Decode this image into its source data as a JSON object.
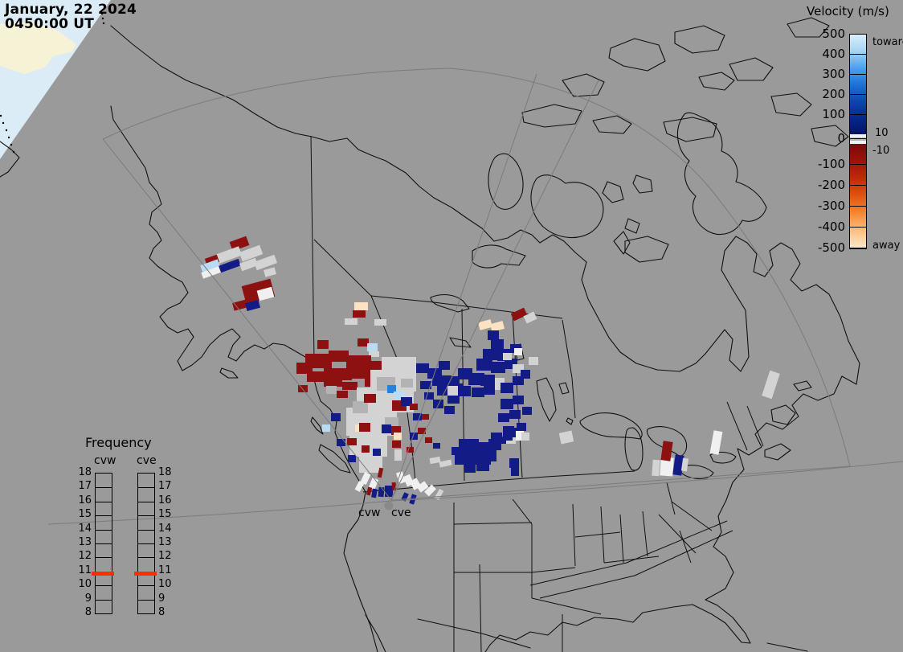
{
  "timestamp": {
    "date_line": "January, 22 2024",
    "time_line": "0450:00 UT"
  },
  "velocity_legend": {
    "title": "Velocity (m/s)",
    "tick_values": [
      "500",
      "400",
      "300",
      "200",
      "100",
      "0",
      "-100",
      "-200",
      "-300",
      "-400",
      "-500"
    ],
    "toward_label": "toward",
    "away_label": "away",
    "threshold_positive": "10",
    "threshold_negative": "-10",
    "gradient_toward": [
      "#d9effb",
      "#a6d5f4",
      "#4da1ee",
      "#1d73d7",
      "#0c47ae",
      "#07278d",
      "#041463"
    ],
    "gradient_away": [
      "#7a0b0b",
      "#9e1209",
      "#c02c06",
      "#e05510",
      "#f58a35",
      "#fbc184",
      "#fdeacb"
    ],
    "ground_band_colors": [
      "#f2f2f2",
      "#b5b5b5",
      "#f2f2f2"
    ]
  },
  "frequency_legend": {
    "title": "Frequency",
    "columns": [
      {
        "label": "cvw"
      },
      {
        "label": "cve"
      }
    ],
    "tick_values": [
      "18",
      "17",
      "16",
      "15",
      "14",
      "13",
      "12",
      "11",
      "10",
      "9",
      "8"
    ],
    "marker_color": "#ff2e00"
  },
  "map": {
    "radar_labels": [
      {
        "label": "cvw"
      },
      {
        "label": "cve"
      }
    ],
    "background_color": "#9a9a9a",
    "outline_color": "#101010",
    "fov_line_color": "#7b7b7b",
    "corner_sea_color": "#dcecf6",
    "corner_land_color": "#f6f2d6",
    "radar_dot_color": "#8a8a8a",
    "cell_palette": {
      "R": "#8e1111",
      "B": "#131c86",
      "G": "#d3d3d3",
      "W": "#f0f0f0",
      "LB": "#b7dcf4",
      "MB": "#2b7fdc",
      "P": "#fbe2c2",
      "MG": "#b3b3b3"
    },
    "cells": [
      [
        "R",
        287,
        297,
        22,
        12,
        -20
      ],
      [
        "G",
        270,
        311,
        30,
        12,
        -20
      ],
      [
        "G",
        299,
        309,
        27,
        12,
        -20
      ],
      [
        "R",
        256,
        319,
        16,
        10,
        -20
      ],
      [
        "LB",
        250,
        326,
        23,
        9,
        -20
      ],
      [
        "W",
        251,
        335,
        23,
        8,
        -20
      ],
      [
        "B",
        273,
        326,
        26,
        9,
        -20
      ],
      [
        "G",
        299,
        324,
        21,
        10,
        -20
      ],
      [
        "G",
        317,
        321,
        27,
        11,
        -20
      ],
      [
        "G",
        329,
        334,
        14,
        9,
        -15
      ],
      [
        "R",
        303,
        351,
        37,
        23,
        -15
      ],
      [
        "W",
        321,
        359,
        19,
        13,
        -15
      ],
      [
        "R",
        290,
        374,
        22,
        10,
        -15
      ],
      [
        "B",
        306,
        375,
        17,
        10,
        -15
      ],
      [
        "P",
        441,
        376,
        17,
        10,
        0
      ],
      [
        "R",
        439,
        386,
        16,
        9,
        0
      ],
      [
        "G",
        429,
        396,
        16,
        8,
        0
      ],
      [
        "G",
        466,
        397,
        15,
        8,
        0
      ],
      [
        "R",
        445,
        421,
        14,
        10,
        0
      ],
      [
        "LB",
        457,
        427,
        13,
        10,
        0
      ],
      [
        "G",
        459,
        437,
        13,
        7,
        0
      ],
      [
        "R",
        395,
        423,
        14,
        11,
        0
      ],
      [
        "R",
        380,
        440,
        33,
        18,
        0
      ],
      [
        "R",
        409,
        436,
        25,
        14,
        0
      ],
      [
        "R",
        431,
        442,
        31,
        17,
        0
      ],
      [
        "R",
        457,
        449,
        25,
        16,
        0
      ],
      [
        "R",
        369,
        451,
        20,
        14,
        0
      ],
      [
        "R",
        382,
        462,
        26,
        13,
        0
      ],
      [
        "R",
        403,
        458,
        35,
        15,
        0
      ],
      [
        "R",
        435,
        458,
        27,
        13,
        0
      ],
      [
        "R",
        403,
        470,
        23,
        11,
        0
      ],
      [
        "R",
        426,
        475,
        19,
        10,
        0
      ],
      [
        "R",
        454,
        469,
        18,
        12,
        0
      ],
      [
        "R",
        469,
        451,
        14,
        19,
        0
      ],
      [
        "R",
        371,
        479,
        12,
        9,
        0
      ],
      [
        "MG",
        406,
        480,
        13,
        10,
        0
      ],
      [
        "R",
        419,
        486,
        14,
        9,
        0
      ],
      [
        "R",
        446,
        488,
        12,
        8,
        0
      ],
      [
        "R",
        461,
        481,
        13,
        9,
        0
      ],
      [
        "G",
        475,
        444,
        43,
        19,
        0
      ],
      [
        "G",
        461,
        460,
        57,
        27,
        0
      ],
      [
        "G",
        444,
        482,
        71,
        31,
        0
      ],
      [
        "G",
        431,
        507,
        63,
        35,
        0
      ],
      [
        "G",
        435,
        539,
        47,
        29,
        0
      ],
      [
        "G",
        447,
        565,
        29,
        23,
        0
      ],
      [
        "MG",
        469,
        469,
        23,
        17,
        0
      ],
      [
        "MG",
        439,
        499,
        19,
        15,
        0
      ],
      [
        "MG",
        479,
        519,
        17,
        13,
        0
      ],
      [
        "MG",
        499,
        471,
        15,
        11,
        0
      ],
      [
        "B",
        518,
        452,
        16,
        12,
        0
      ],
      [
        "B",
        532,
        458,
        18,
        13,
        0
      ],
      [
        "B",
        546,
        449,
        14,
        11,
        0
      ],
      [
        "B",
        538,
        468,
        16,
        12,
        0
      ],
      [
        "B",
        523,
        474,
        14,
        10,
        0
      ],
      [
        "B",
        550,
        467,
        12,
        16,
        0
      ],
      [
        "B",
        528,
        488,
        12,
        9,
        0
      ],
      [
        "B",
        544,
        479,
        17,
        13,
        0
      ],
      [
        "B",
        557,
        491,
        15,
        11,
        0
      ],
      [
        "B",
        539,
        497,
        13,
        11,
        0
      ],
      [
        "B",
        553,
        505,
        13,
        10,
        0
      ],
      [
        "B",
        565,
        477,
        11,
        13,
        0
      ],
      [
        "MB",
        482,
        479,
        11,
        10,
        0
      ],
      [
        "LB",
        490,
        487,
        14,
        10,
        0
      ],
      [
        "R",
        488,
        498,
        18,
        13,
        0
      ],
      [
        "B",
        499,
        494,
        14,
        11,
        0
      ],
      [
        "R",
        510,
        502,
        10,
        8,
        0
      ],
      [
        "R",
        453,
        490,
        15,
        11,
        0
      ],
      [
        "B",
        412,
        514,
        12,
        10,
        0
      ],
      [
        "LB",
        401,
        528,
        10,
        9,
        0
      ],
      [
        "P",
        442,
        528,
        12,
        9,
        0
      ],
      [
        "R",
        447,
        526,
        14,
        11,
        0
      ],
      [
        "R",
        432,
        545,
        12,
        9,
        0
      ],
      [
        "B",
        419,
        546,
        11,
        9,
        0
      ],
      [
        "R",
        450,
        554,
        10,
        9,
        0
      ],
      [
        "B",
        464,
        558,
        10,
        9,
        0
      ],
      [
        "B",
        433,
        566,
        10,
        9,
        0
      ],
      [
        "B",
        475,
        528,
        12,
        11,
        0
      ],
      [
        "R",
        487,
        530,
        12,
        11,
        0
      ],
      [
        "P",
        490,
        538,
        10,
        9,
        0
      ],
      [
        "R",
        488,
        548,
        11,
        9,
        0
      ],
      [
        "B",
        510,
        538,
        10,
        9,
        0
      ],
      [
        "R",
        520,
        532,
        10,
        8,
        0
      ],
      [
        "R",
        506,
        556,
        9,
        7,
        0
      ],
      [
        "B",
        514,
        514,
        11,
        9,
        0
      ],
      [
        "R",
        525,
        515,
        9,
        7,
        0
      ],
      [
        "G",
        491,
        559,
        9,
        14,
        0
      ],
      [
        "R",
        529,
        544,
        9,
        7,
        0
      ],
      [
        "B",
        539,
        551,
        9,
        7,
        0
      ],
      [
        "G",
        535,
        569,
        13,
        7,
        -10
      ],
      [
        "G",
        547,
        573,
        15,
        7,
        -12
      ],
      [
        "R",
        471,
        582,
        5,
        12,
        12
      ],
      [
        "W",
        451,
        588,
        8,
        14,
        25
      ],
      [
        "W",
        461,
        595,
        8,
        13,
        22
      ],
      [
        "W",
        444,
        599,
        7,
        12,
        28
      ],
      [
        "R",
        457,
        606,
        5,
        10,
        15
      ],
      [
        "B",
        463,
        608,
        6,
        11,
        10
      ],
      [
        "B",
        471,
        606,
        7,
        12,
        5
      ],
      [
        "B",
        479,
        604,
        10,
        14,
        0
      ],
      [
        "R",
        488,
        600,
        5,
        10,
        -6
      ],
      [
        "W",
        495,
        587,
        8,
        14,
        -18
      ],
      [
        "W",
        504,
        591,
        9,
        13,
        -24
      ],
      [
        "W",
        512,
        596,
        10,
        12,
        -30
      ],
      [
        "B",
        499,
        615,
        10,
        6,
        -65
      ],
      [
        "B",
        508,
        618,
        12,
        6,
        -72
      ],
      [
        "W",
        520,
        601,
        12,
        9,
        -36
      ],
      [
        "W",
        529,
        606,
        13,
        8,
        -45
      ],
      [
        "G",
        540,
        612,
        13,
        6,
        -60
      ],
      [
        "R",
        637,
        386,
        18,
        10,
        -25
      ],
      [
        "G",
        653,
        390,
        14,
        10,
        -25
      ],
      [
        "P",
        596,
        399,
        16,
        10,
        -15
      ],
      [
        "P",
        611,
        401,
        16,
        10,
        -15
      ],
      [
        "B",
        607,
        411,
        14,
        12,
        0
      ],
      [
        "B",
        611,
        422,
        16,
        14,
        0
      ],
      [
        "B",
        601,
        434,
        18,
        14,
        0
      ],
      [
        "B",
        619,
        434,
        18,
        15,
        0
      ],
      [
        "B",
        635,
        428,
        14,
        11,
        0
      ],
      [
        "W",
        640,
        433,
        10,
        9,
        0
      ],
      [
        "B",
        593,
        446,
        20,
        15,
        0
      ],
      [
        "B",
        611,
        450,
        18,
        14,
        0
      ],
      [
        "B",
        628,
        446,
        16,
        13,
        0
      ],
      [
        "G",
        626,
        439,
        11,
        9,
        0
      ],
      [
        "G",
        638,
        453,
        14,
        11,
        0
      ],
      [
        "B",
        570,
        458,
        18,
        14,
        0
      ],
      [
        "B",
        583,
        464,
        20,
        15,
        0
      ],
      [
        "B",
        598,
        466,
        18,
        14,
        0
      ],
      [
        "B",
        558,
        468,
        14,
        12,
        0
      ],
      [
        "G",
        557,
        480,
        14,
        12,
        0
      ],
      [
        "B",
        570,
        480,
        16,
        13,
        0
      ],
      [
        "B",
        587,
        482,
        16,
        12,
        0
      ],
      [
        "B",
        602,
        480,
        14,
        11,
        0
      ],
      [
        "G",
        616,
        470,
        12,
        15,
        0
      ],
      [
        "B",
        623,
        476,
        16,
        13,
        0
      ],
      [
        "B",
        638,
        468,
        14,
        11,
        0
      ],
      [
        "B",
        648,
        460,
        12,
        11,
        0
      ],
      [
        "G",
        658,
        444,
        12,
        10,
        0
      ],
      [
        "B",
        623,
        496,
        16,
        13,
        0
      ],
      [
        "B",
        638,
        492,
        14,
        11,
        0
      ],
      [
        "B",
        620,
        514,
        14,
        11,
        0
      ],
      [
        "B",
        634,
        510,
        14,
        11,
        0
      ],
      [
        "B",
        650,
        506,
        12,
        10,
        0
      ],
      [
        "B",
        626,
        530,
        14,
        11,
        0
      ],
      [
        "B",
        643,
        526,
        12,
        10,
        0
      ],
      [
        "G",
        630,
        543,
        12,
        9,
        0
      ],
      [
        "B",
        618,
        543,
        12,
        9,
        0
      ],
      [
        "B",
        571,
        546,
        25,
        18,
        0
      ],
      [
        "B",
        588,
        550,
        23,
        16,
        0
      ],
      [
        "B",
        578,
        560,
        33,
        18,
        0
      ],
      [
        "B",
        566,
        564,
        18,
        14,
        0
      ],
      [
        "B",
        598,
        558,
        20,
        16,
        0
      ],
      [
        "B",
        608,
        546,
        16,
        14,
        0
      ],
      [
        "B",
        611,
        538,
        14,
        12,
        0
      ],
      [
        "B",
        593,
        574,
        16,
        12,
        0
      ],
      [
        "B",
        578,
        578,
        14,
        10,
        0
      ],
      [
        "B",
        562,
        556,
        12,
        10,
        0
      ],
      [
        "B",
        633,
        532,
        14,
        12,
        0
      ],
      [
        "B",
        626,
        538,
        12,
        10,
        0
      ],
      [
        "W",
        642,
        536,
        10,
        12,
        0
      ],
      [
        "G",
        649,
        538,
        10,
        10,
        0
      ],
      [
        "B",
        634,
        570,
        12,
        12,
        0
      ],
      [
        "B",
        636,
        582,
        10,
        10,
        0
      ],
      [
        "G",
        697,
        537,
        16,
        14,
        -12
      ],
      [
        "G",
        812,
        572,
        9,
        20,
        4
      ],
      [
        "W",
        822,
        569,
        16,
        23,
        4
      ],
      [
        "R",
        824,
        549,
        12,
        24,
        8
      ],
      [
        "B",
        839,
        566,
        11,
        25,
        8
      ],
      [
        "G",
        849,
        570,
        7,
        16,
        8
      ],
      [
        "W",
        886,
        536,
        11,
        29,
        10
      ],
      [
        "G",
        953,
        462,
        13,
        33,
        18
      ]
    ]
  }
}
